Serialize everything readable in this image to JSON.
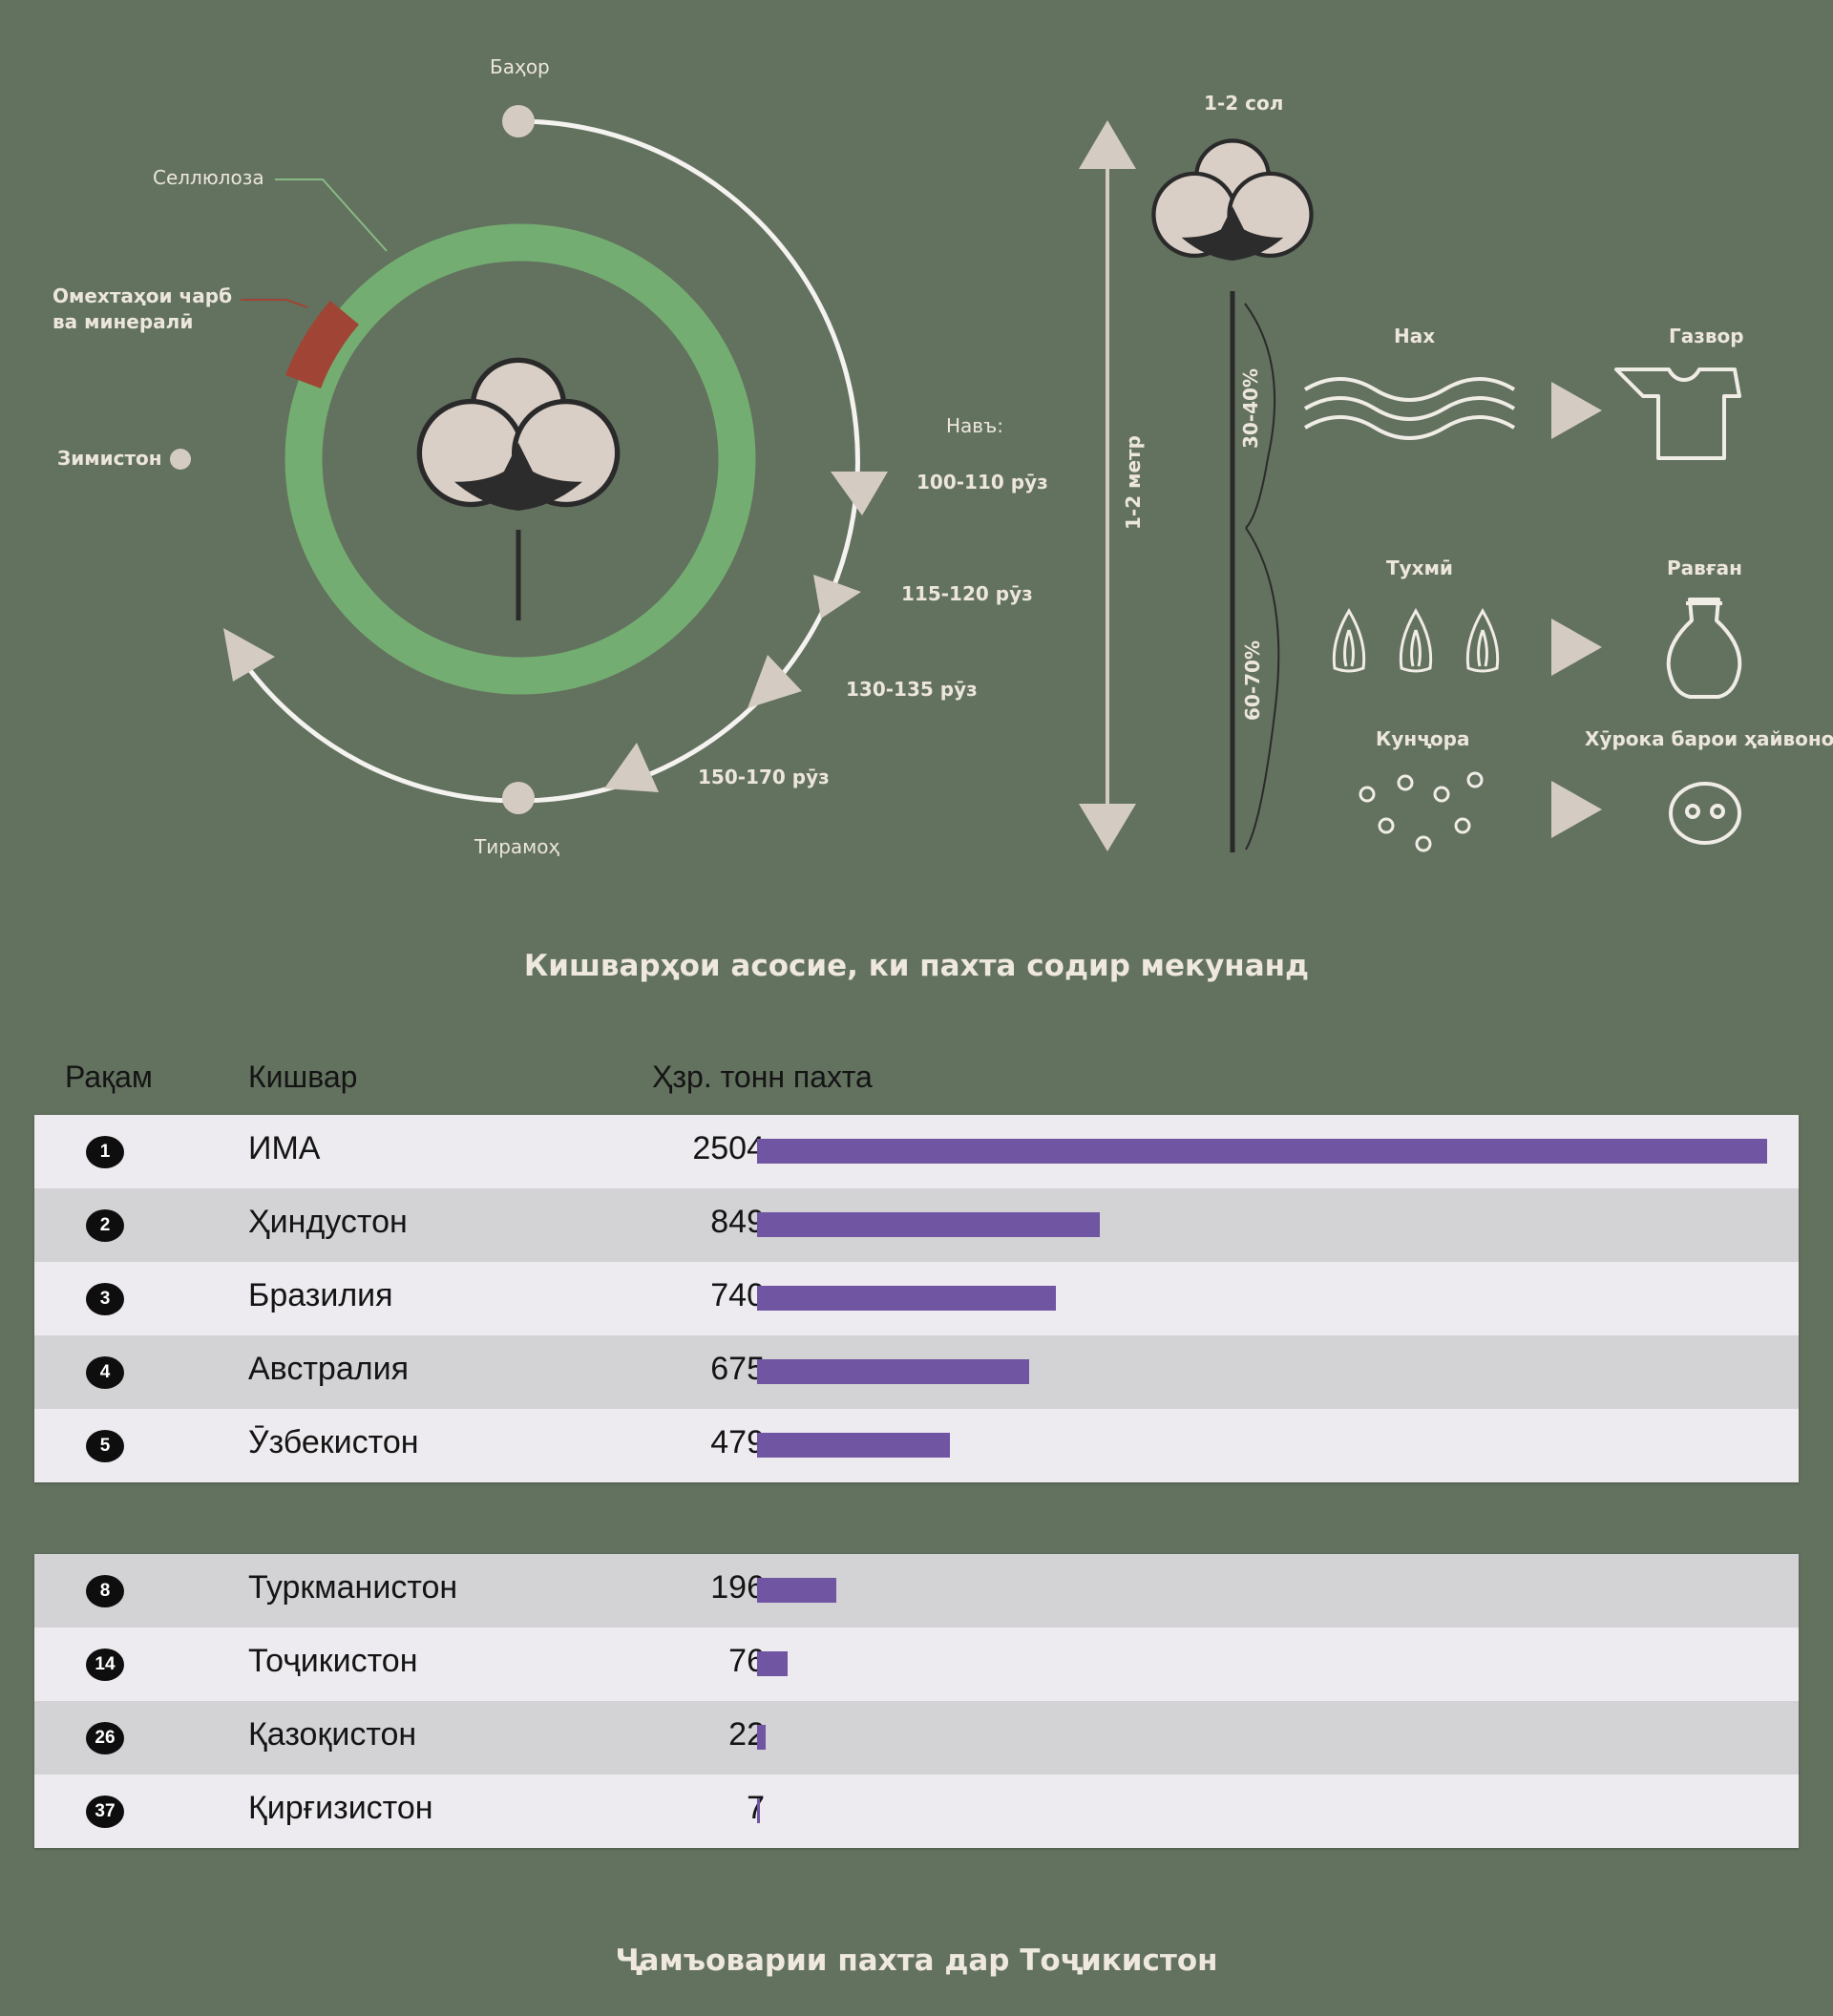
{
  "cycle": {
    "seasons": {
      "spring": "Баҳор",
      "autumn": "Тирамоҳ",
      "winter": "Зимистон"
    },
    "composition": {
      "cellulose": "Селлюлоза",
      "fats_line1": "Омехтаҳои чарб",
      "fats_line2": "ва минералӣ"
    },
    "varieties": {
      "label": "Навъ:",
      "items": [
        "100-110 рӯз",
        "115-120 рӯз",
        "130-135 рӯз",
        "150-170 рӯз"
      ]
    }
  },
  "plant": {
    "age": "1-2 сол",
    "height": "1-2 метр",
    "fiber_share": "30-40%",
    "seed_share": "60-70%",
    "products": [
      {
        "source": "Нах",
        "result": "Газвор"
      },
      {
        "source": "Тухмӣ",
        "result": "Равған"
      },
      {
        "source": "Кунҷора",
        "result": "Хӯрока барои ҳайвонот"
      }
    ]
  },
  "table_title": "Кишварҳои асосие, ки пахта содир мекунанд",
  "headers": {
    "rank": "Рақам",
    "country": "Кишвар",
    "value": "Ҳзр. тонн пахта"
  },
  "colors": {
    "bar": "#7055a3",
    "ring": "#74ad71",
    "accent": "#a04535"
  },
  "chart_data": {
    "type": "bar",
    "unit": "Ҳзр. тонн пахта",
    "groups": [
      {
        "rows": [
          {
            "rank": "1",
            "country": "ИМА",
            "value": 2504
          },
          {
            "rank": "2",
            "country": "Ҳиндустон",
            "value": 849
          },
          {
            "rank": "3",
            "country": "Бразилия",
            "value": 740
          },
          {
            "rank": "4",
            "country": "Австралия",
            "value": 675
          },
          {
            "rank": "5",
            "country": "Ӯзбекистон",
            "value": 479
          }
        ]
      },
      {
        "rows": [
          {
            "rank": "8",
            "country": "Туркманистон",
            "value": 196
          },
          {
            "rank": "14",
            "country": "Тоҷикистон",
            "value": 76
          },
          {
            "rank": "26",
            "country": "Қазоқистон",
            "value": 22
          },
          {
            "rank": "37",
            "country": "Қирғизистон",
            "value": 7
          }
        ]
      }
    ]
  },
  "footer_title": "Ҷамъоварии пахта дар Тоҷикистон"
}
